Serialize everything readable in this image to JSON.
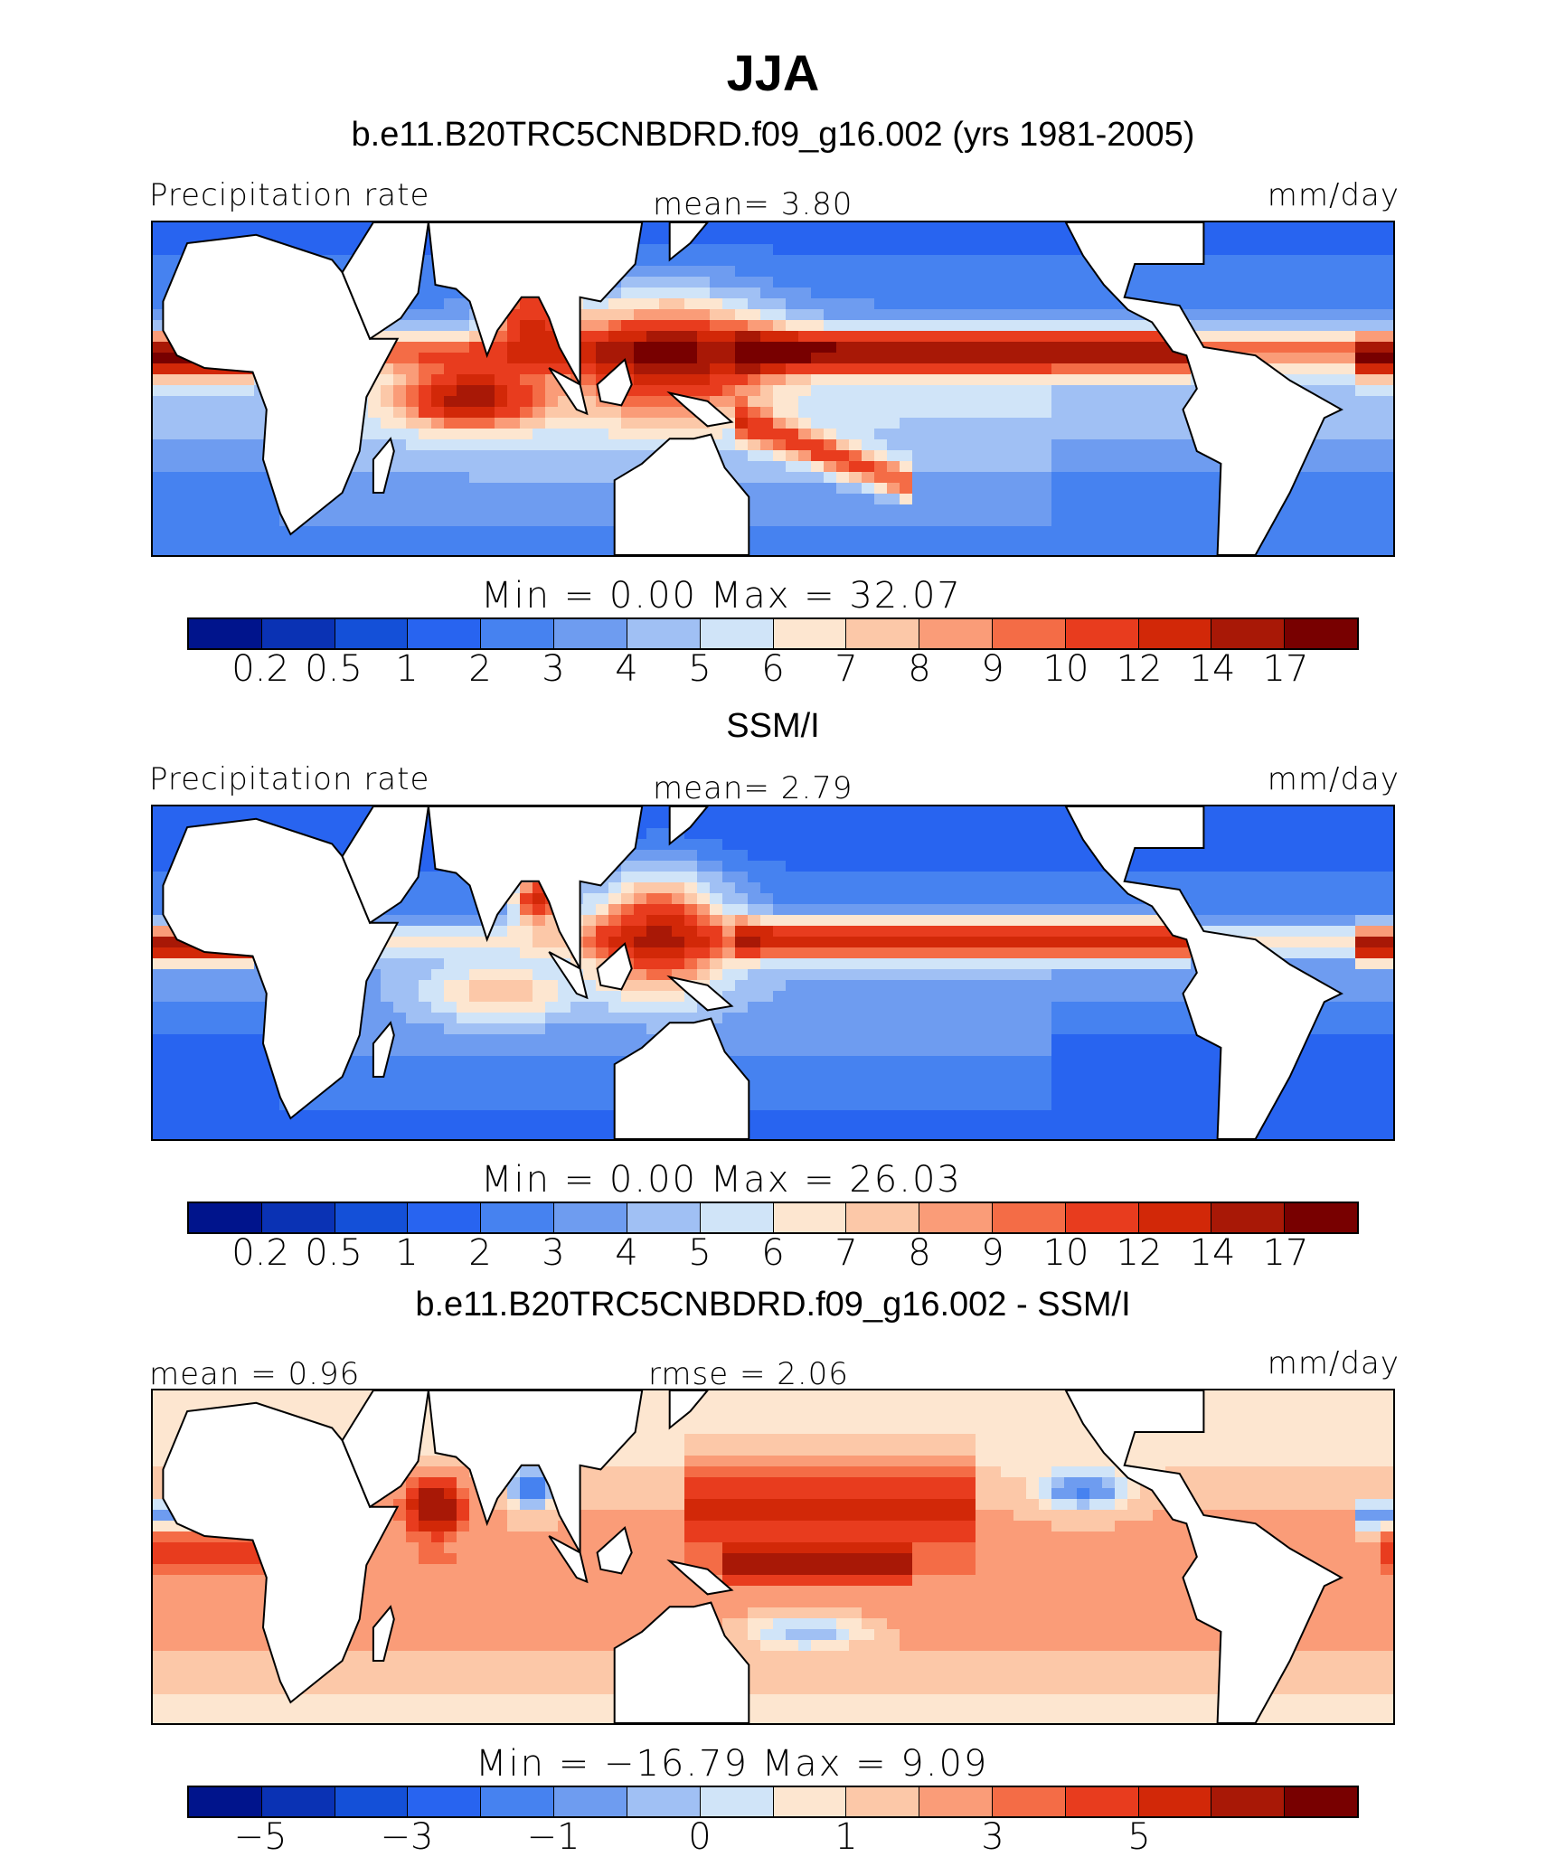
{
  "figure": {
    "title": "JJA",
    "case_title": "b.e11.B20TRC5CNBDRD.f09_g16.002 (yrs 1981-2005)",
    "obs_title": "SSM/I",
    "diff_title": "b.e11.B20TRC5CNBDRD.f09_g16.002 - SSM/I"
  },
  "colors": {
    "palette": [
      "#00148c",
      "#0a32b4",
      "#1450d8",
      "#2864f0",
      "#4682f0",
      "#6e9cf0",
      "#a0c0f4",
      "#d0e4f8",
      "#fde6d0",
      "#fcc8a8",
      "#fa9c78",
      "#f46c46",
      "#e83c1e",
      "#d22808",
      "#a81806",
      "#780000"
    ],
    "land": "#ffffff",
    "coast": "#000000"
  },
  "panels": [
    {
      "left_label": "Precipitation rate",
      "center_label": "mean=   3.80",
      "right_label": "mm/day",
      "minmax": "Min =    0.00 Max =   32.07",
      "ticks": [
        "0.2",
        "0.5",
        "1",
        "2",
        "3",
        "4",
        "5",
        "6",
        "7",
        "8",
        "9",
        "10",
        "12",
        "14",
        "17"
      ]
    },
    {
      "left_label": "Precipitation rate",
      "center_label": "mean=   2.79",
      "right_label": "mm/day",
      "minmax": "Min =    0.00 Max =   26.03",
      "ticks": [
        "0.2",
        "0.5",
        "1",
        "2",
        "3",
        "4",
        "5",
        "6",
        "7",
        "8",
        "9",
        "10",
        "12",
        "14",
        "17"
      ]
    },
    {
      "left_label": "mean =   0.96",
      "center_label": "rmse =   2.06",
      "right_label": "mm/day",
      "minmax": "Min = −16.79 Max =    9.09",
      "ticks": [
        "−5",
        "−3",
        "−1",
        "0",
        "1",
        "3",
        "5"
      ]
    }
  ],
  "chart_data": [
    {
      "type": "heatmap",
      "title": "b.e11.B20TRC5CNBDRD.f09_g16.002 (yrs 1981-2005)",
      "variable": "Precipitation rate",
      "units": "mm/day",
      "mean": 3.8,
      "min": 0.0,
      "max": 32.07,
      "levels": [
        0.2,
        0.5,
        1,
        2,
        3,
        4,
        5,
        6,
        7,
        8,
        9,
        10,
        12,
        14,
        17
      ]
    },
    {
      "type": "heatmap",
      "title": "SSM/I",
      "variable": "Precipitation rate",
      "units": "mm/day",
      "mean": 2.79,
      "min": 0.0,
      "max": 26.03,
      "levels": [
        0.2,
        0.5,
        1,
        2,
        3,
        4,
        5,
        6,
        7,
        8,
        9,
        10,
        12,
        14,
        17
      ]
    },
    {
      "type": "heatmap",
      "title": "b.e11.B20TRC5CNBDRD.f09_g16.002 - SSM/I",
      "units": "mm/day",
      "mean": 0.96,
      "rmse": 2.06,
      "min": -16.79,
      "max": 9.09,
      "levels": [
        -5,
        -3,
        -1,
        0,
        1,
        3,
        5
      ]
    }
  ]
}
